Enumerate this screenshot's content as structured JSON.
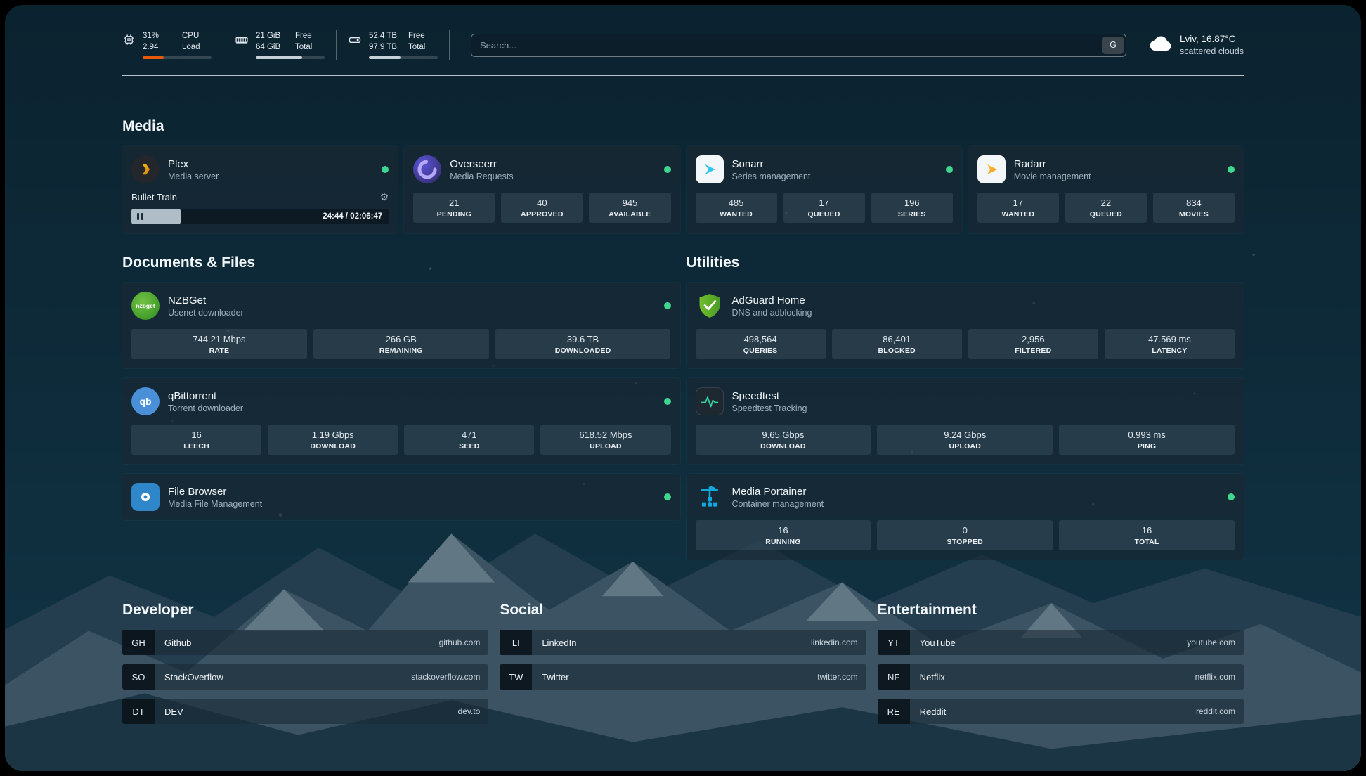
{
  "colors": {
    "status_online": "#3fd68f",
    "cpu_bar": "#e8590c",
    "meter_fill": "#c6d0d8",
    "accent_green": "#38d39f"
  },
  "topbar": {
    "metrics": [
      {
        "name": "cpu",
        "rows": [
          [
            "31%",
            "CPU"
          ],
          [
            "2.94",
            "Load"
          ]
        ],
        "bar_pct": 31
      },
      {
        "name": "memory",
        "rows": [
          [
            "21 GiB",
            "Free"
          ],
          [
            "64 GiB",
            "Total"
          ]
        ],
        "bar_pct": 67
      },
      {
        "name": "disk",
        "rows": [
          [
            "52.4 TB",
            "Free"
          ],
          [
            "97.9 TB",
            "Total"
          ]
        ],
        "bar_pct": 46
      }
    ],
    "search": {
      "placeholder": "Search...",
      "button_label": "G"
    },
    "weather": {
      "location": "Lviv, 16.87°C",
      "condition": "scattered clouds"
    }
  },
  "sections": {
    "media": {
      "title": "Media",
      "cards": [
        {
          "name": "Plex",
          "description": "Media server",
          "now_playing": {
            "title": "Bullet Train",
            "time": "24:44 / 02:06:47",
            "progress_pct": 19
          }
        },
        {
          "name": "Overseerr",
          "description": "Media Requests",
          "stats": [
            {
              "value": "21",
              "label": "PENDING"
            },
            {
              "value": "40",
              "label": "APPROVED"
            },
            {
              "value": "945",
              "label": "AVAILABLE"
            }
          ]
        },
        {
          "name": "Sonarr",
          "description": "Series management",
          "stats": [
            {
              "value": "485",
              "label": "WANTED"
            },
            {
              "value": "17",
              "label": "QUEUED"
            },
            {
              "value": "196",
              "label": "SERIES"
            }
          ]
        },
        {
          "name": "Radarr",
          "description": "Movie management",
          "stats": [
            {
              "value": "17",
              "label": "WANTED"
            },
            {
              "value": "22",
              "label": "QUEUED"
            },
            {
              "value": "834",
              "label": "MOVIES"
            }
          ]
        }
      ]
    },
    "documents": {
      "title": "Documents & Files",
      "cards": [
        {
          "name": "NZBGet",
          "description": "Usenet downloader",
          "stats": [
            {
              "value": "744.21 Mbps",
              "label": "RATE"
            },
            {
              "value": "266 GB",
              "label": "REMAINING"
            },
            {
              "value": "39.6 TB",
              "label": "DOWNLOADED"
            }
          ]
        },
        {
          "name": "qBittorrent",
          "description": "Torrent downloader",
          "stats": [
            {
              "value": "16",
              "label": "LEECH"
            },
            {
              "value": "1.19 Gbps",
              "label": "DOWNLOAD"
            },
            {
              "value": "471",
              "label": "SEED"
            },
            {
              "value": "618.52 Mbps",
              "label": "UPLOAD"
            }
          ]
        },
        {
          "name": "File Browser",
          "description": "Media File Management",
          "stats": []
        }
      ]
    },
    "utilities": {
      "title": "Utilities",
      "cards": [
        {
          "name": "AdGuard Home",
          "description": "DNS and adblocking",
          "stats": [
            {
              "value": "498,564",
              "label": "QUERIES"
            },
            {
              "value": "86,401",
              "label": "BLOCKED"
            },
            {
              "value": "2,956",
              "label": "FILTERED"
            },
            {
              "value": "47.569 ms",
              "label": "LATENCY"
            }
          ]
        },
        {
          "name": "Speedtest",
          "description": "Speedtest Tracking",
          "stats": [
            {
              "value": "9.65 Gbps",
              "label": "DOWNLOAD"
            },
            {
              "value": "9.24 Gbps",
              "label": "UPLOAD"
            },
            {
              "value": "0.993 ms",
              "label": "PING"
            }
          ]
        },
        {
          "name": "Media Portainer",
          "description": "Container management",
          "stats": [
            {
              "value": "16",
              "label": "RUNNING"
            },
            {
              "value": "0",
              "label": "STOPPED"
            },
            {
              "value": "16",
              "label": "TOTAL"
            }
          ]
        }
      ]
    }
  },
  "bookmarks": [
    {
      "title": "Developer",
      "items": [
        {
          "abbr": "GH",
          "name": "Github",
          "url": "github.com"
        },
        {
          "abbr": "SO",
          "name": "StackOverflow",
          "url": "stackoverflow.com"
        },
        {
          "abbr": "DT",
          "name": "DEV",
          "url": "dev.to"
        }
      ]
    },
    {
      "title": "Social",
      "items": [
        {
          "abbr": "LI",
          "name": "LinkedIn",
          "url": "linkedin.com"
        },
        {
          "abbr": "TW",
          "name": "Twitter",
          "url": "twitter.com"
        }
      ]
    },
    {
      "title": "Entertainment",
      "items": [
        {
          "abbr": "YT",
          "name": "YouTube",
          "url": "youtube.com"
        },
        {
          "abbr": "NF",
          "name": "Netflix",
          "url": "netflix.com"
        },
        {
          "abbr": "RE",
          "name": "Reddit",
          "url": "reddit.com"
        }
      ]
    }
  ]
}
